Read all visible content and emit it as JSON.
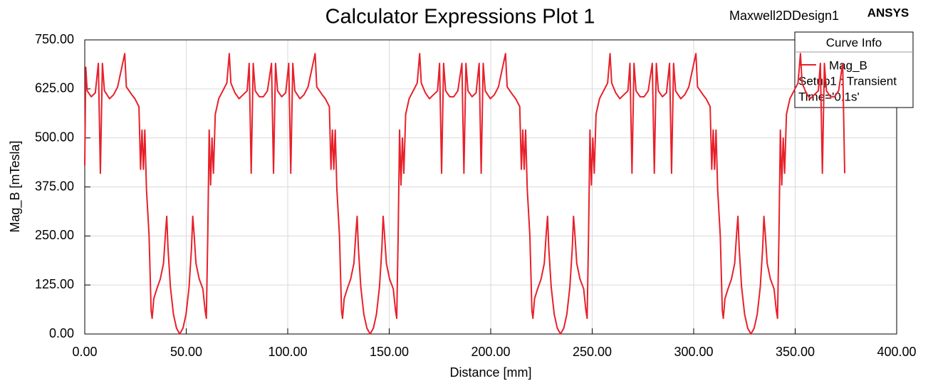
{
  "chart_data": {
    "type": "line",
    "title": "Calculator Expressions Plot 1",
    "design": "Maxwell2DDesign1",
    "brand": "ANSYS",
    "x_label": "Distance [mm]",
    "y_label": "Mag_B [mTesla]",
    "legend": {
      "title": "Curve Info",
      "notes": [
        "Setup1 : Transient",
        "Time='0.1s'"
      ],
      "position": "upper right"
    },
    "grid": true,
    "xlim": [
      0,
      400
    ],
    "ylim": [
      0,
      750
    ],
    "xticks": [
      {
        "value": 0,
        "label": "0.00"
      },
      {
        "value": 50,
        "label": "50.00"
      },
      {
        "value": 100,
        "label": "100.00"
      },
      {
        "value": 150,
        "label": "150.00"
      },
      {
        "value": 200,
        "label": "200.00"
      },
      {
        "value": 250,
        "label": "250.00"
      },
      {
        "value": 300,
        "label": "300.00"
      },
      {
        "value": 350,
        "label": "350.00"
      },
      {
        "value": 400,
        "label": "400.00"
      }
    ],
    "yticks": [
      {
        "value": 0,
        "label": "0.00"
      },
      {
        "value": 125,
        "label": "125.00"
      },
      {
        "value": 250,
        "label": "250.00"
      },
      {
        "value": 375,
        "label": "375.00"
      },
      {
        "value": 500,
        "label": "500.00"
      },
      {
        "value": 625,
        "label": "625.00"
      },
      {
        "value": 750,
        "label": "750.00"
      }
    ],
    "x": [
      0,
      0.5,
      1.2,
      3.2,
      5.2,
      6.7,
      7.7,
      8.7,
      9.7,
      12.2,
      14.2,
      16.2,
      19.7,
      20.5,
      21.2,
      23.2,
      24.7,
      26.7,
      27.5,
      28.2,
      28.9,
      29.6,
      30.4,
      31.7,
      32.7,
      33.2,
      34.0,
      35.5,
      37.2,
      38.8,
      39.8,
      40.4,
      41.0,
      42.2,
      43.7,
      45.2,
      46.8,
      48.4,
      49.9,
      51.4,
      52.6,
      53.2,
      53.8,
      54.8,
      56.4,
      58.2,
      59.3,
      59.9,
      60.6,
      61.3,
      62.0,
      62.7,
      63.4,
      64.3,
      66.0,
      68.0,
      70.0,
      71.2,
      72.0,
      74.0,
      76.0,
      78.0,
      80.0,
      81.0,
      82.0,
      83.0,
      84.0,
      86.0,
      88.0,
      90.0,
      92.0,
      93.0,
      94.0,
      95.0,
      97.0,
      99.0,
      100.5,
      101.5,
      102.5,
      103.5,
      106.0,
      108.0,
      110.0,
      113.5,
      114.3,
      115.0,
      117.0,
      118.5,
      120.5,
      121.3,
      122.0,
      122.7,
      123.4,
      124.2,
      125.5,
      126.5,
      127.0,
      127.8,
      129.3,
      131.0,
      132.6,
      133.6,
      134.2,
      134.8,
      136.0,
      137.5,
      139.0,
      140.6,
      142.2,
      143.7,
      145.2,
      146.4,
      147.0,
      147.6,
      148.6,
      150.2,
      152.0,
      153.1,
      153.7,
      154.4,
      155.1,
      155.8,
      156.5,
      157.2,
      158.1,
      159.8,
      161.8,
      163.8,
      165.0,
      165.8,
      167.8,
      169.8,
      171.8,
      173.8,
      174.8,
      175.8,
      176.8,
      177.8,
      179.8,
      181.8,
      183.8,
      185.8,
      186.8,
      187.8,
      188.8,
      190.8,
      192.8,
      194.3,
      195.3,
      196.3,
      197.3,
      199.8,
      201.8,
      203.8,
      207.3,
      208.1,
      208.8,
      210.8,
      212.3,
      214.3,
      215.1,
      215.8,
      216.5,
      217.2,
      218.0,
      219.3,
      220.3,
      220.8,
      221.6,
      223.1,
      224.8,
      226.4,
      227.4,
      228.0,
      228.6,
      229.8,
      231.3,
      232.8,
      234.4,
      236.0,
      237.5,
      239.0,
      240.2,
      240.8,
      241.4,
      242.4,
      244.0,
      245.8,
      246.9,
      247.5,
      248.2,
      248.9,
      249.6,
      250.3,
      251.0,
      251.9,
      253.6,
      255.6,
      257.6,
      258.8,
      259.6,
      261.6,
      263.6,
      265.6,
      267.6,
      268.6,
      269.6,
      270.6,
      271.6,
      273.6,
      275.6,
      277.6,
      279.6,
      280.6,
      281.6,
      282.6,
      284.6,
      286.6,
      288.1,
      289.1,
      290.1,
      291.1,
      293.6,
      295.6,
      297.6,
      301.1,
      301.9,
      302.6,
      304.6,
      306.1,
      308.1,
      308.9,
      309.6,
      310.3,
      311.0,
      311.8,
      313.1,
      314.1,
      314.6,
      315.4,
      316.9,
      318.6,
      320.2,
      321.2,
      321.8,
      322.4,
      323.6,
      325.1,
      326.6,
      328.2,
      329.8,
      331.3,
      332.8,
      334.0,
      334.6,
      335.2,
      336.2,
      337.8,
      339.6,
      340.7,
      341.3,
      342.0,
      342.7,
      343.4,
      344.1,
      344.8,
      345.7,
      347.4,
      349.4,
      351.4,
      352.6,
      353.4,
      355.4,
      357.4,
      359.4,
      361.4,
      362.4,
      363.4,
      364.4,
      365.4,
      367.4,
      369.4,
      371.4,
      373.4,
      374.4
    ],
    "series": [
      {
        "name": "Mag_B",
        "color": "#e8202a",
        "values": [
          430,
          680,
          620,
          605,
          615,
          690,
          410,
          690,
          620,
          600,
          610,
          630,
          715,
          630,
          625,
          610,
          600,
          580,
          420,
          520,
          420,
          520,
          370,
          250,
          60,
          40,
          90,
          115,
          140,
          180,
          260,
          300,
          220,
          120,
          50,
          15,
          0,
          15,
          50,
          120,
          220,
          300,
          260,
          180,
          140,
          115,
          60,
          40,
          250,
          520,
          380,
          500,
          410,
          560,
          600,
          620,
          640,
          715,
          640,
          615,
          600,
          610,
          620,
          690,
          410,
          690,
          620,
          605,
          605,
          620,
          690,
          410,
          690,
          620,
          605,
          615,
          690,
          410,
          690,
          620,
          600,
          610,
          630,
          715,
          630,
          625,
          610,
          600,
          580,
          420,
          520,
          420,
          520,
          370,
          250,
          60,
          40,
          90,
          115,
          140,
          180,
          260,
          300,
          220,
          120,
          50,
          15,
          0,
          15,
          50,
          120,
          220,
          300,
          260,
          180,
          140,
          115,
          60,
          40,
          250,
          520,
          380,
          500,
          410,
          560,
          600,
          620,
          640,
          715,
          640,
          615,
          600,
          610,
          620,
          690,
          410,
          690,
          620,
          605,
          605,
          620,
          690,
          410,
          690,
          620,
          605,
          615,
          690,
          410,
          690,
          620,
          600,
          610,
          630,
          715,
          630,
          625,
          610,
          600,
          580,
          420,
          520,
          420,
          520,
          370,
          250,
          60,
          40,
          90,
          115,
          140,
          180,
          260,
          300,
          220,
          120,
          50,
          15,
          0,
          15,
          50,
          120,
          220,
          300,
          260,
          180,
          140,
          115,
          60,
          40,
          250,
          520,
          380,
          500,
          410,
          560,
          600,
          620,
          640,
          715,
          640,
          615,
          600,
          610,
          620,
          690,
          410,
          690,
          620,
          605,
          605,
          620,
          690,
          410,
          690,
          620,
          605,
          615,
          690,
          410,
          690,
          620,
          600,
          610,
          630,
          715,
          630,
          625,
          610,
          600,
          580,
          420,
          520,
          420,
          520,
          370,
          250,
          60,
          40,
          90,
          115,
          140,
          180,
          260,
          300,
          220,
          120,
          50,
          15,
          0,
          15,
          50,
          120,
          220,
          300,
          260,
          180,
          140,
          115,
          60,
          40,
          250,
          520,
          380,
          500,
          410,
          560,
          600,
          620,
          640,
          715,
          640,
          615,
          600,
          610,
          620,
          690,
          410,
          690,
          620,
          605,
          605,
          620,
          690,
          410
        ]
      }
    ]
  }
}
